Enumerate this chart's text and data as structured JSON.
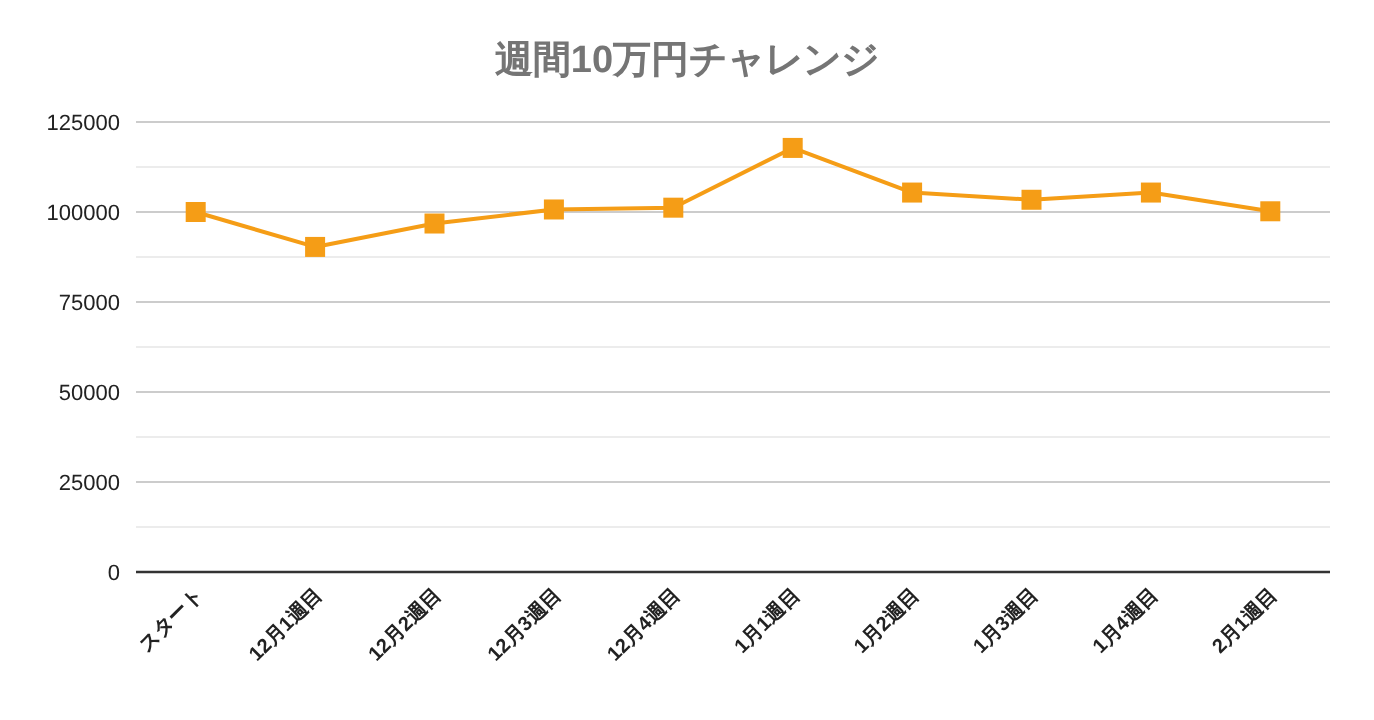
{
  "chart_data": {
    "type": "line",
    "title": "週間10万円チャレンジ",
    "categories": [
      "スタート",
      "12月1週目",
      "12月2週目",
      "12月3週目",
      "12月4週目",
      "1月1週目",
      "1月2週目",
      "1月3週目",
      "1月4週目",
      "2月1週目"
    ],
    "series": [
      {
        "color": "#f59d16",
        "values": [
          100000,
          90300,
          96800,
          100700,
          101200,
          117800,
          105400,
          103400,
          105400,
          100200
        ]
      }
    ],
    "ylim": [
      0,
      125000
    ],
    "yticks": [
      0,
      {
        "value": 12500,
        "label": null
      },
      25000,
      {
        "value": 37500,
        "label": null
      },
      50000,
      {
        "value": 62500,
        "label": null
      },
      75000,
      {
        "value": 87500,
        "label": null
      },
      100000,
      {
        "value": 112500,
        "label": null
      },
      125000
    ],
    "grid": "y",
    "marker": "square",
    "line_style": "solid"
  }
}
